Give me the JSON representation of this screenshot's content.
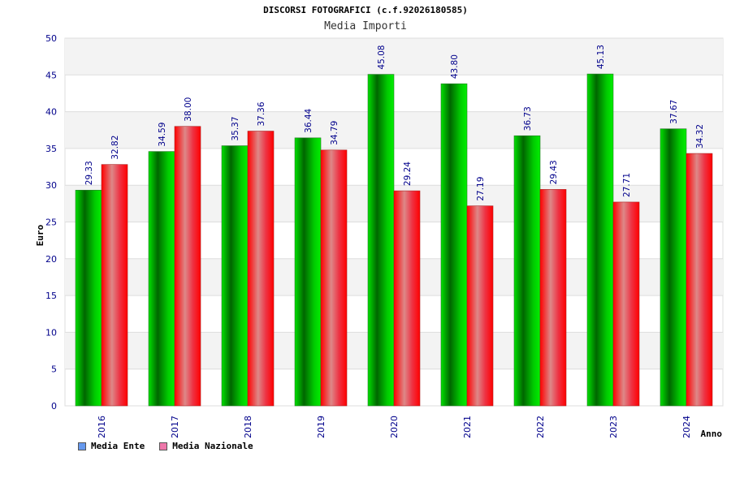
{
  "chart_data": {
    "type": "bar",
    "title": "DISCORSI FOTOGRAFICI (c.f.92026180585)",
    "subtitle": "Media Importi",
    "xlabel": "Anno",
    "ylabel": "Euro",
    "ylim": [
      0,
      50
    ],
    "yticks": [
      0,
      5,
      10,
      15,
      20,
      25,
      30,
      35,
      40,
      45,
      50
    ],
    "categories": [
      "2016",
      "2017",
      "2018",
      "2019",
      "2020",
      "2021",
      "2022",
      "2023",
      "2024"
    ],
    "series": [
      {
        "name": "Media Ente",
        "values": [
          29.33,
          34.59,
          35.37,
          36.44,
          45.08,
          43.8,
          36.73,
          45.13,
          37.67
        ],
        "labels": [
          "29.33",
          "34.59",
          "35.37",
          "36.44",
          "45.08",
          "43.80",
          "36.73",
          "45.13",
          "37.67"
        ],
        "color": "#00c000"
      },
      {
        "name": "Media Nazionale",
        "values": [
          32.82,
          38.0,
          37.36,
          34.79,
          29.24,
          27.19,
          29.43,
          27.71,
          34.32
        ],
        "labels": [
          "32.82",
          "38.00",
          "37.36",
          "34.79",
          "29.24",
          "27.19",
          "29.43",
          "27.71",
          "34.32"
        ],
        "color": "#ff0000"
      }
    ],
    "legend_swatch_colors": [
      "#6699ee",
      "#ee77aa"
    ],
    "legend_position": "bottom-left",
    "grid": true
  }
}
